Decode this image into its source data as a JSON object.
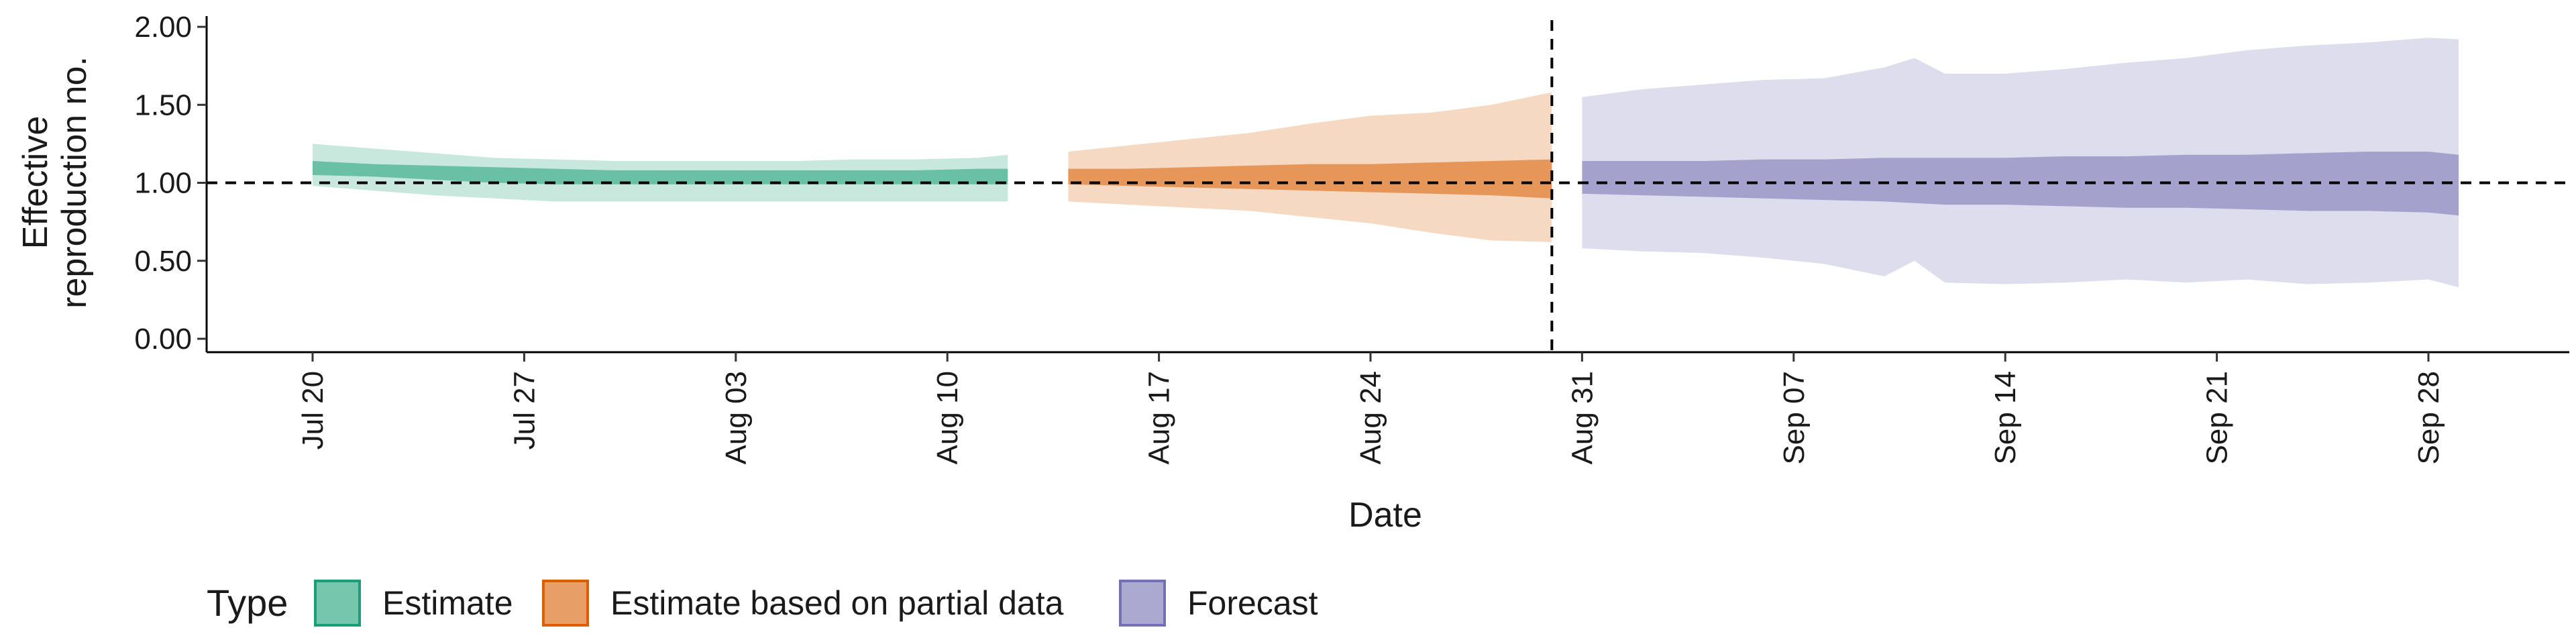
{
  "chart_data": {
    "type": "area",
    "xlabel": "Date",
    "ylabel": [
      "Effective",
      "reproduction no."
    ],
    "ylim": [
      0,
      2
    ],
    "y_ticks": [
      "0.00",
      "0.50",
      "1.00",
      "1.50",
      "2.00"
    ],
    "x_ticks": [
      {
        "date": "2020-07-20",
        "label": "Jul 20"
      },
      {
        "date": "2020-07-27",
        "label": "Jul 27"
      },
      {
        "date": "2020-08-03",
        "label": "Aug 03"
      },
      {
        "date": "2020-08-10",
        "label": "Aug 10"
      },
      {
        "date": "2020-08-17",
        "label": "Aug 17"
      },
      {
        "date": "2020-08-24",
        "label": "Aug 24"
      },
      {
        "date": "2020-08-31",
        "label": "Aug 31"
      },
      {
        "date": "2020-09-07",
        "label": "Sep 07"
      },
      {
        "date": "2020-09-14",
        "label": "Sep 14"
      },
      {
        "date": "2020-09-21",
        "label": "Sep 21"
      },
      {
        "date": "2020-09-28",
        "label": "Sep 28"
      }
    ],
    "xlim": [
      "2020-07-16",
      "2020-10-02"
    ],
    "reference_hline": 1.0,
    "reference_vline": "2020-08-30",
    "grid": false,
    "legend": {
      "title": "Type",
      "position": "bottom",
      "entries": [
        {
          "label": "Estimate",
          "color": "#1b9e77"
        },
        {
          "label": "Estimate based on partial data",
          "color": "#d95f02"
        },
        {
          "label": "Forecast",
          "color": "#7570b3"
        }
      ]
    },
    "series": [
      {
        "name": "Estimate",
        "color": "#1b9e77",
        "x": [
          "2020-07-20",
          "2020-07-22",
          "2020-07-24",
          "2020-07-26",
          "2020-07-28",
          "2020-07-30",
          "2020-08-01",
          "2020-08-03",
          "2020-08-05",
          "2020-08-07",
          "2020-08-09",
          "2020-08-11",
          "2020-08-12"
        ],
        "lower_90": [
          0.98,
          0.95,
          0.92,
          0.9,
          0.88,
          0.88,
          0.88,
          0.88,
          0.88,
          0.88,
          0.88,
          0.88,
          0.88
        ],
        "upper_90": [
          1.25,
          1.22,
          1.19,
          1.16,
          1.15,
          1.14,
          1.14,
          1.14,
          1.14,
          1.15,
          1.15,
          1.16,
          1.18
        ],
        "lower_50": [
          1.05,
          1.04,
          1.02,
          1.0,
          0.99,
          0.99,
          0.99,
          0.99,
          0.99,
          0.99,
          0.99,
          0.99,
          0.99
        ],
        "upper_50": [
          1.14,
          1.12,
          1.11,
          1.1,
          1.09,
          1.08,
          1.08,
          1.08,
          1.08,
          1.08,
          1.08,
          1.09,
          1.09
        ]
      },
      {
        "name": "Estimate based on partial data",
        "color": "#d95f02",
        "x": [
          "2020-08-14",
          "2020-08-16",
          "2020-08-18",
          "2020-08-20",
          "2020-08-22",
          "2020-08-24",
          "2020-08-26",
          "2020-08-28",
          "2020-08-30"
        ],
        "lower_90": [
          0.88,
          0.86,
          0.84,
          0.82,
          0.78,
          0.74,
          0.68,
          0.63,
          0.62
        ],
        "upper_90": [
          1.2,
          1.24,
          1.28,
          1.32,
          1.38,
          1.43,
          1.45,
          1.5,
          1.58
        ],
        "lower_50": [
          0.99,
          0.98,
          0.97,
          0.96,
          0.95,
          0.94,
          0.93,
          0.92,
          0.9
        ],
        "upper_50": [
          1.09,
          1.09,
          1.1,
          1.11,
          1.12,
          1.12,
          1.13,
          1.14,
          1.15
        ]
      },
      {
        "name": "Forecast",
        "color": "#7570b3",
        "x": [
          "2020-08-31",
          "2020-09-02",
          "2020-09-04",
          "2020-09-06",
          "2020-09-08",
          "2020-09-10",
          "2020-09-11",
          "2020-09-12",
          "2020-09-14",
          "2020-09-16",
          "2020-09-18",
          "2020-09-20",
          "2020-09-22",
          "2020-09-24",
          "2020-09-26",
          "2020-09-28",
          "2020-09-29"
        ],
        "lower_90": [
          0.58,
          0.56,
          0.55,
          0.52,
          0.48,
          0.4,
          0.5,
          0.36,
          0.35,
          0.36,
          0.38,
          0.36,
          0.38,
          0.35,
          0.36,
          0.38,
          0.33
        ],
        "upper_90": [
          1.55,
          1.6,
          1.63,
          1.66,
          1.67,
          1.74,
          1.8,
          1.7,
          1.7,
          1.73,
          1.77,
          1.8,
          1.85,
          1.88,
          1.9,
          1.93,
          1.92
        ],
        "lower_50": [
          0.93,
          0.92,
          0.91,
          0.9,
          0.89,
          0.88,
          0.87,
          0.86,
          0.86,
          0.85,
          0.84,
          0.84,
          0.83,
          0.82,
          0.82,
          0.81,
          0.79
        ],
        "upper_50": [
          1.14,
          1.14,
          1.14,
          1.15,
          1.15,
          1.16,
          1.16,
          1.16,
          1.16,
          1.17,
          1.17,
          1.18,
          1.18,
          1.19,
          1.2,
          1.2,
          1.18
        ]
      }
    ]
  }
}
